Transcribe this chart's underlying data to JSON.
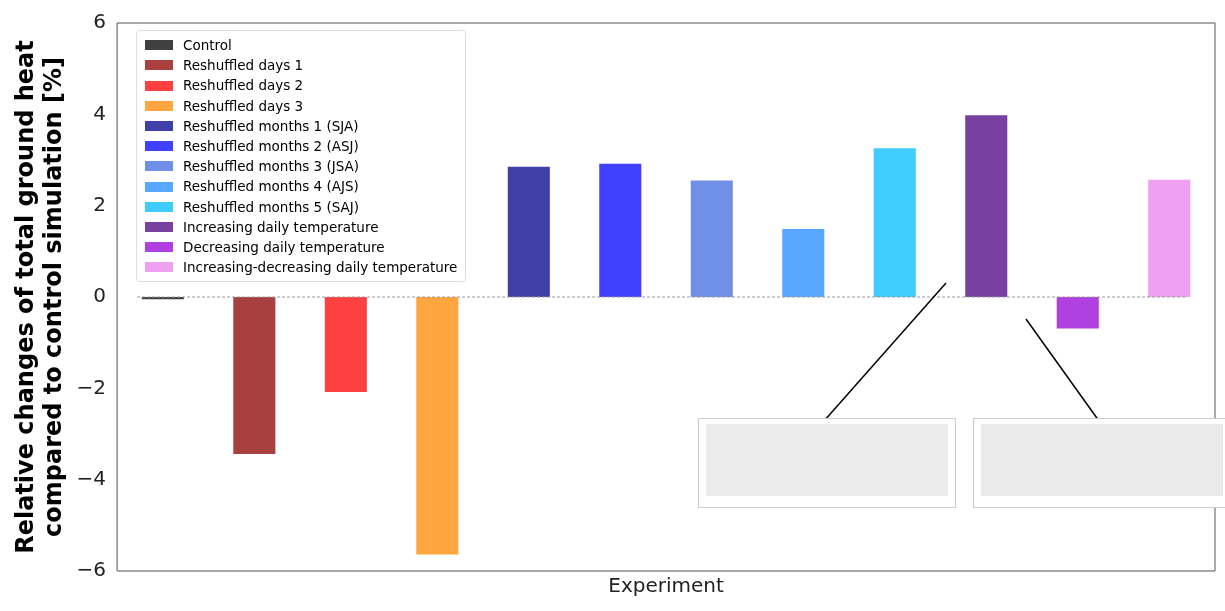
{
  "chart_data": {
    "type": "bar",
    "xlabel": "Experiment",
    "ylabel": "Relative changes of total ground heat\ncompared to control simulation [%]",
    "categories": [
      null,
      null,
      null,
      null,
      null,
      null,
      null,
      null,
      null,
      null,
      null,
      null
    ],
    "series": [
      {
        "name": "Control",
        "color": "#404040",
        "values": [
          -0.05,
          null,
          null,
          null,
          null,
          null,
          null,
          null,
          null,
          null,
          null,
          null
        ]
      },
      {
        "name": "Reshuffled days 1",
        "color": "#a84040",
        "values": [
          null,
          -3.44,
          null,
          null,
          null,
          null,
          null,
          null,
          null,
          null,
          null,
          null
        ]
      },
      {
        "name": "Reshuffled days 2",
        "color": "#ff4040",
        "values": [
          null,
          null,
          -2.08,
          null,
          null,
          null,
          null,
          null,
          null,
          null,
          null,
          null
        ]
      },
      {
        "name": "Reshuffled days 3",
        "color": "#ffa640",
        "values": [
          null,
          null,
          null,
          -5.64,
          null,
          null,
          null,
          null,
          null,
          null,
          null,
          null
        ]
      },
      {
        "name": "Reshuffled months 1 (SJA)",
        "color": "#4040a8",
        "values": [
          null,
          null,
          null,
          null,
          2.85,
          null,
          null,
          null,
          null,
          null,
          null,
          null
        ]
      },
      {
        "name": "Reshuffled months 2 (ASJ)",
        "color": "#4040ff",
        "values": [
          null,
          null,
          null,
          null,
          null,
          2.92,
          null,
          null,
          null,
          null,
          null,
          null
        ]
      },
      {
        "name": "Reshuffled months 3 (JSA)",
        "color": "#7090e8",
        "values": [
          null,
          null,
          null,
          null,
          null,
          null,
          2.55,
          null,
          null,
          null,
          null,
          null
        ]
      },
      {
        "name": "Reshuffled months 4 (AJS)",
        "color": "#58a8ff",
        "values": [
          null,
          null,
          null,
          null,
          null,
          null,
          null,
          1.49,
          null,
          null,
          null,
          null
        ]
      },
      {
        "name": "Reshuffled months 5 (SAJ)",
        "color": "#40ccff",
        "values": [
          null,
          null,
          null,
          null,
          null,
          null,
          null,
          null,
          3.26,
          null,
          null,
          null
        ]
      },
      {
        "name": "Increasing daily temperature",
        "color": "#7840a0",
        "values": [
          null,
          null,
          null,
          null,
          null,
          null,
          null,
          null,
          null,
          3.98,
          null,
          null
        ]
      },
      {
        "name": "Decreasing daily temperature",
        "color": "#b040e0",
        "values": [
          null,
          null,
          null,
          null,
          null,
          null,
          null,
          null,
          null,
          null,
          -0.69,
          null
        ]
      },
      {
        "name": "Increasing-decreasing daily temperature",
        "color": "#f0a0f0",
        "values": [
          null,
          null,
          null,
          null,
          null,
          null,
          null,
          null,
          null,
          null,
          null,
          2.57
        ]
      }
    ],
    "ylim": [
      -6,
      6
    ],
    "yticks": [
      {
        "value": -6,
        "label": "−6"
      },
      {
        "value": -4,
        "label": "−4"
      },
      {
        "value": -2,
        "label": "−2"
      },
      0,
      2,
      4,
      6
    ],
    "ref_lines": [
      {
        "axis": "y",
        "value": 0,
        "color": "#999999",
        "line_style": "dashed"
      }
    ],
    "legend": "top left",
    "grid": false,
    "tick_labels": "y"
  }
}
